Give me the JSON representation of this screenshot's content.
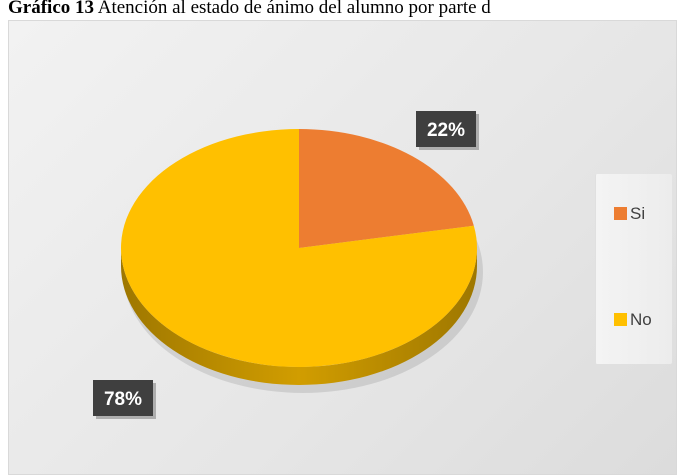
{
  "caption": {
    "label": "Gráfico 13",
    "text": " Atención al estado de ánimo del alumno por parte d"
  },
  "chart_data": {
    "type": "pie",
    "categories": [
      "Si",
      "No"
    ],
    "values": [
      22,
      78
    ],
    "data_labels": [
      "22%",
      "78%"
    ],
    "colors": [
      "#ED7D31",
      "#FFC000"
    ],
    "legend_position": "right",
    "style": "3d"
  }
}
